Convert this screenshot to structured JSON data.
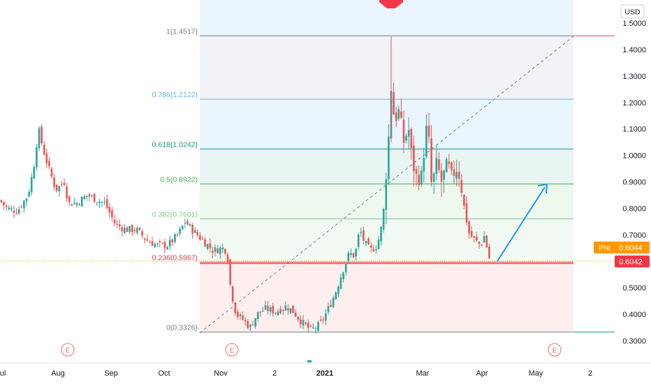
{
  "currency_button": "USD",
  "chart_data": {
    "type": "candlestick",
    "y_ticks": [
      "1.5000",
      "1.4000",
      "1.3000",
      "1.2000",
      "1.1000",
      "1.0000",
      "0.9000",
      "0.8000",
      "0.7000",
      "0.6000",
      "0.5000",
      "0.4000",
      "0.3000"
    ],
    "ylim": [
      0.22,
      1.52
    ],
    "x_ticks": [
      "ul",
      "Aug",
      "Sep",
      "Oct",
      "Nov",
      "2",
      "2021",
      "Mar",
      "Apr",
      "May",
      "2"
    ],
    "fib_levels": [
      {
        "ratio": 1,
        "value": 1.4517,
        "label": "1(1.4517)",
        "color": "#787b86"
      },
      {
        "ratio": 0.786,
        "value": 1.2122,
        "label": "0.786(1.2122)",
        "color": "#64b5f6"
      },
      {
        "ratio": 0.618,
        "value": 1.0242,
        "label": "0.618(1.0242)",
        "color": "#089981"
      },
      {
        "ratio": 0.5,
        "value": 0.8922,
        "label": "0.5(0.8922)",
        "color": "#4caf50"
      },
      {
        "ratio": 0.382,
        "value": 0.7601,
        "label": "0.382(0.7601)",
        "color": "#81c784"
      },
      {
        "ratio": 0.236,
        "value": 0.5967,
        "label": "0.236(0.5967)",
        "color": "#f23645"
      },
      {
        "ratio": 0,
        "value": 0.3326,
        "label": "0(0.3326)",
        "color": "#787b86"
      }
    ],
    "price_tags": {
      "pre": {
        "label": "Pre",
        "value": "0.6044",
        "color": "#ff9800"
      },
      "last": {
        "value": "0.6042",
        "color": "#f23645"
      }
    },
    "earnings_label": "E",
    "arrow": {
      "from": 0.6,
      "to": 0.89
    },
    "colors": {
      "up": "#26a69a",
      "down": "#ef5350",
      "up_hollow": "#26a69a"
    }
  }
}
